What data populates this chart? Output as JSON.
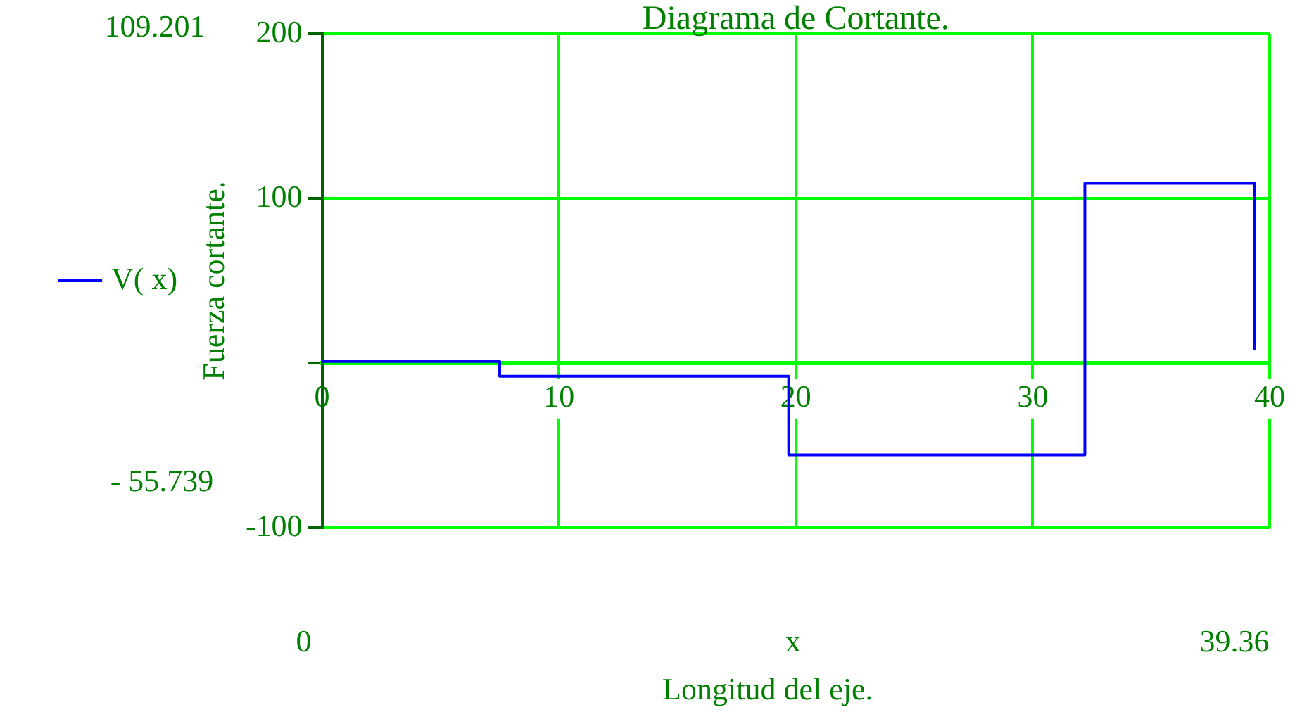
{
  "chart_data": {
    "type": "step",
    "title": "Diagrama de Cortante.",
    "xlabel": "x",
    "ylabel": "Fuerza cortante.",
    "annotations": [
      "109.201",
      "- 55.739",
      "0",
      "39.36",
      "Longitud del eje."
    ],
    "x": [
      0,
      7.5,
      19.7,
      32.2,
      39.36
    ],
    "series": [
      {
        "name": "V( x)",
        "color": "#0000ff",
        "values": [
          1,
          -8,
          -55.739,
          109.201,
          8
        ]
      }
    ],
    "xlim": [
      0,
      40
    ],
    "xticks": [
      0,
      10,
      20,
      30,
      40
    ],
    "ylim": [
      -100,
      200
    ],
    "yticks": [
      -100,
      {
        "value": 0,
        "label": null
      },
      100,
      200
    ],
    "grid": true,
    "legend": "left"
  }
}
